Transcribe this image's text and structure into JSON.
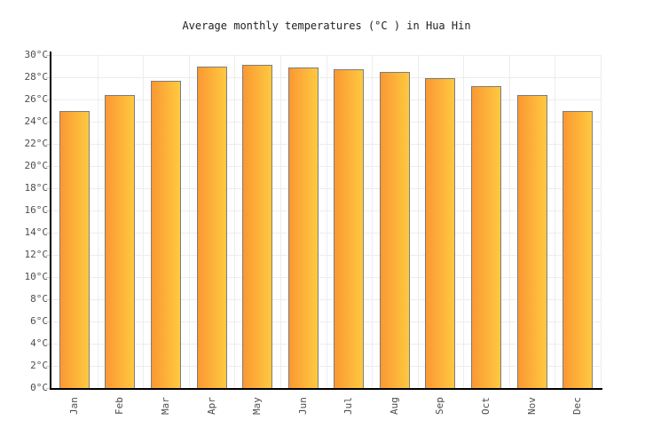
{
  "page": {
    "title": "Average monthly temperatures (°C ) in Hua Hin"
  },
  "chart_data": {
    "type": "bar",
    "title": "Average monthly temperatures (°C ) in Hua Hin",
    "categories": [
      "Jan",
      "Feb",
      "Mar",
      "Apr",
      "May",
      "Jun",
      "Jul",
      "Aug",
      "Sep",
      "Oct",
      "Nov",
      "Dec"
    ],
    "values": [
      25.0,
      26.4,
      27.7,
      29.0,
      29.1,
      28.9,
      28.7,
      28.5,
      27.9,
      27.2,
      26.4,
      25.0
    ],
    "unit": "°C",
    "xlabel": "",
    "ylabel": "",
    "ylim": [
      0,
      30
    ],
    "ytick_step": 2,
    "ytick_labels": [
      "0°C",
      "2°C",
      "4°C",
      "6°C",
      "8°C",
      "10°C",
      "12°C",
      "14°C",
      "16°C",
      "18°C",
      "20°C",
      "22°C",
      "24°C",
      "26°C",
      "28°C",
      "30°C"
    ],
    "grid": true,
    "legend": "none",
    "colors": {
      "background": "#FFFFFF",
      "bar_gradient_left": "#FA9833",
      "bar_gradient_right": "#FFC940",
      "bar_border": "#7D7D7D",
      "gridline": "#EDEDED",
      "axis": "#000000",
      "tick": "#CCCCCC",
      "tick_label": "#4D4D4D",
      "title": "#222222"
    }
  }
}
